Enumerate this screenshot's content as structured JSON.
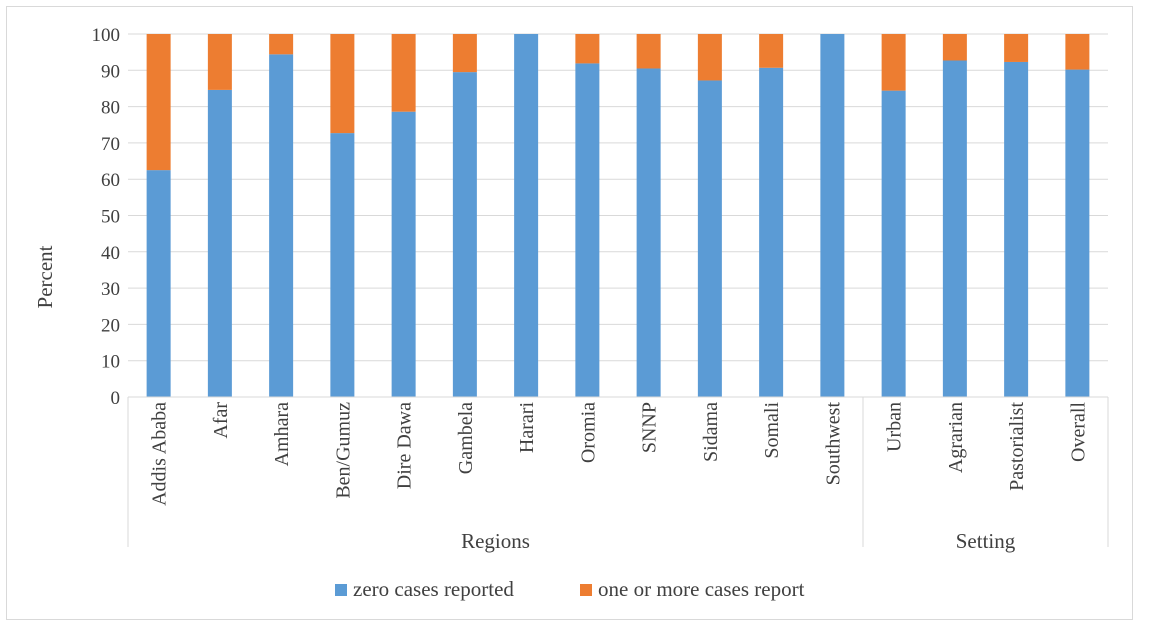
{
  "chart_data": {
    "type": "bar",
    "stacked": true,
    "ylabel": "Percent",
    "ylim": [
      0,
      100
    ],
    "yticks": [
      0,
      10,
      20,
      30,
      40,
      50,
      60,
      70,
      80,
      90,
      100
    ],
    "grid": true,
    "categories": [
      "Addis Ababa",
      "Afar",
      "Amhara",
      "Ben/Gumuz",
      "Dire Dawa",
      "Gambela",
      "Harari",
      "Oromia",
      "SNNP",
      "Sidama",
      "Somali",
      "Southwest",
      "Urban",
      "Agrarian",
      "Pastorialist",
      "Overall"
    ],
    "groups": [
      {
        "label": "Regions",
        "count": 12
      },
      {
        "label": "Setting",
        "count": 4
      }
    ],
    "series": [
      {
        "name": "zero cases reported",
        "color": "#5b9bd5",
        "values": [
          62.5,
          84.6,
          94.4,
          72.7,
          78.6,
          89.5,
          100,
          91.9,
          90.5,
          87.2,
          90.7,
          100,
          84.4,
          92.7,
          92.3,
          90.2
        ]
      },
      {
        "name": "one or more cases report",
        "color": "#ed7d31",
        "values": [
          37.5,
          15.4,
          5.6,
          27.3,
          21.4,
          10.5,
          0,
          8.1,
          9.5,
          12.8,
          9.3,
          0,
          15.6,
          7.3,
          7.7,
          9.8
        ]
      }
    ],
    "legend_position": "bottom"
  }
}
